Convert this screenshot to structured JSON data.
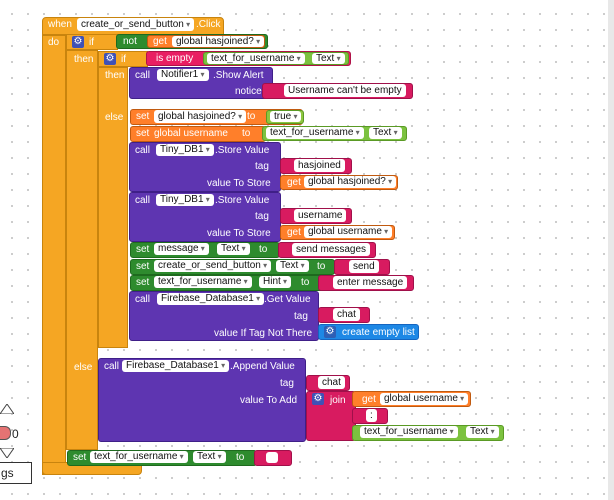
{
  "event": {
    "when": "when",
    "component": "create_or_send_button",
    "event": ".Click",
    "do": "do"
  },
  "if1": {
    "if": "if",
    "then": "then",
    "else": "else",
    "not": "not",
    "get": "get",
    "var": "global hasjoined?"
  },
  "if2": {
    "if": "if",
    "then": "then",
    "else": "else",
    "is_empty": "is empty",
    "component": "text_for_username",
    "prop": "Text"
  },
  "notifier": {
    "call": "call",
    "component": "Notifier1",
    "method": ".Show Alert",
    "arg": "notice",
    "message": "Username can't be empty"
  },
  "set1": {
    "set": "set",
    "var": "global hasjoined?",
    "to": "to",
    "value": "true"
  },
  "set2": {
    "set": "set",
    "var": "global username",
    "to": "to",
    "component": "text_for_username",
    "prop": "Text"
  },
  "store1": {
    "call": "call",
    "component": "Tiny_DB1",
    "method": ".Store Value",
    "tag_label": "tag",
    "tag": "hasjoined",
    "vts_label": "value To Store",
    "get": "get",
    "var": "global hasjoined?"
  },
  "store2": {
    "call": "call",
    "component": "Tiny_DB1",
    "method": ".Store Value",
    "tag_label": "tag",
    "tag": "username",
    "vts_label": "value To Store",
    "get": "get",
    "var": "global username"
  },
  "set3": {
    "set": "set",
    "component": "message",
    "prop": "Text",
    "to": "to",
    "value": "send messages"
  },
  "set4": {
    "set": "set",
    "component": "create_or_send_button",
    "prop": "Text",
    "to": "to",
    "value": "send"
  },
  "set5": {
    "set": "set",
    "component": "text_for_username",
    "prop": "Hint",
    "to": "to",
    "value": "enter message"
  },
  "getval": {
    "call": "call",
    "component": "Firebase_Database1",
    "method": ".Get Value",
    "tag_label": "tag",
    "tag": "chat",
    "vit_label": "value If Tag Not There",
    "list": "create empty list"
  },
  "append": {
    "call": "call",
    "component": "Firebase_Database1",
    "method": ".Append Value",
    "tag_label": "tag",
    "tag": "chat",
    "vta_label": "value To Add",
    "join": "join",
    "get": "get",
    "var": "global username",
    "sep": ":",
    "component2": "text_for_username",
    "prop2": "Text"
  },
  "set6": {
    "set": "set",
    "component": "text_for_username",
    "prop": "Text",
    "to": "to"
  },
  "widget": {
    "count": "0",
    "label": "gs"
  }
}
